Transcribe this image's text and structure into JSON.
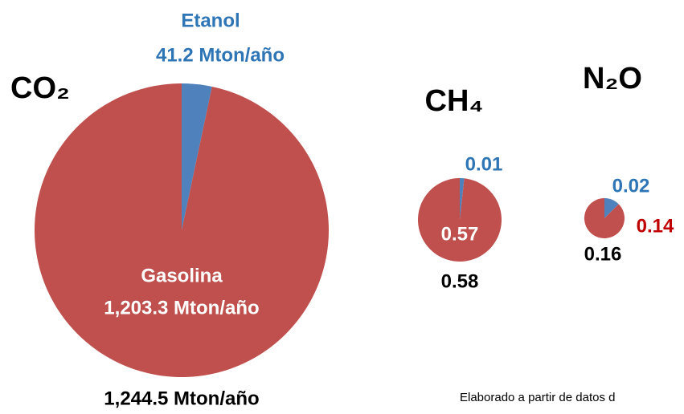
{
  "chart_data": [
    {
      "type": "pie",
      "title": "CO₂",
      "categories": [
        "Etanol",
        "Gasolina"
      ],
      "values": [
        41.2,
        1203.3
      ],
      "value_labels": [
        "41.2 Mton/año",
        "1,203.3 Mton/año"
      ],
      "colors": [
        "#4f81bd",
        "#c0504d"
      ],
      "total": 1244.5,
      "total_label": "1,244.5 Mton/año"
    },
    {
      "type": "pie",
      "title": "CH₄",
      "categories": [
        null,
        null
      ],
      "values": [
        0.01,
        0.57
      ],
      "colors": [
        "#4f81bd",
        "#c0504d"
      ],
      "total": 0.58
    },
    {
      "type": "pie",
      "title": "N₂O",
      "categories": [
        null,
        null
      ],
      "values": [
        0.02,
        0.14
      ],
      "colors": [
        "#4f81bd",
        "#c0504d"
      ],
      "total": 0.16
    }
  ],
  "note": "Elaborado a partir de datos d"
}
